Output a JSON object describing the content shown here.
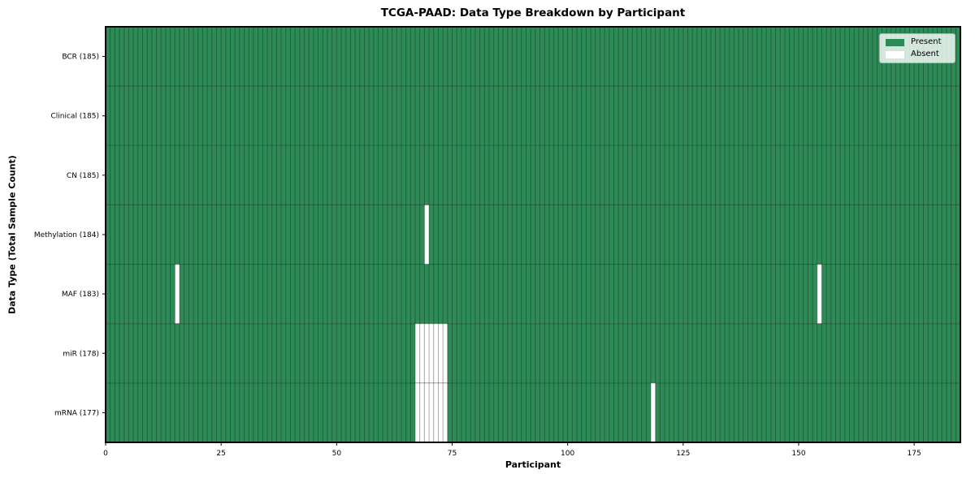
{
  "chart_data": {
    "type": "heatmap",
    "title": "TCGA-PAAD: Data Type Breakdown by Participant",
    "xlabel": "Participant",
    "ylabel": "Data Type (Total Sample Count)",
    "n_participants": 185,
    "x_range": [
      0,
      185
    ],
    "x_ticks": [
      0,
      25,
      50,
      75,
      100,
      125,
      150,
      175
    ],
    "grid": true,
    "legend_position": "upper right",
    "legend": [
      {
        "label": "Present",
        "color": "#2e8b57"
      },
      {
        "label": "Absent",
        "color": "#ffffff"
      }
    ],
    "colors": {
      "present": "#2e8b57",
      "absent": "#ffffff",
      "grid_color": "#000000",
      "grid_opacity": 0.3,
      "row_divider_opacity": 0.35,
      "spine": "#000000",
      "text": "#000000"
    },
    "rows": [
      {
        "label": "BCR",
        "total": 185,
        "tick_label": "BCR (185)",
        "absent_participants": []
      },
      {
        "label": "Clinical",
        "total": 185,
        "tick_label": "Clinical (185)",
        "absent_participants": []
      },
      {
        "label": "CN",
        "total": 185,
        "tick_label": "CN (185)",
        "absent_participants": []
      },
      {
        "label": "Methylation",
        "total": 184,
        "tick_label": "Methylation (184)",
        "absent_participants": [
          69
        ]
      },
      {
        "label": "MAF",
        "total": 183,
        "tick_label": "MAF (183)",
        "absent_participants": [
          15,
          154
        ]
      },
      {
        "label": "miR",
        "total": 178,
        "tick_label": "miR (178)",
        "absent_participants": [
          67,
          68,
          69,
          70,
          71,
          72,
          73
        ]
      },
      {
        "label": "mRNA",
        "total": 177,
        "tick_label": "mRNA (177)",
        "absent_participants": [
          67,
          68,
          69,
          70,
          71,
          72,
          73,
          118
        ]
      }
    ]
  }
}
